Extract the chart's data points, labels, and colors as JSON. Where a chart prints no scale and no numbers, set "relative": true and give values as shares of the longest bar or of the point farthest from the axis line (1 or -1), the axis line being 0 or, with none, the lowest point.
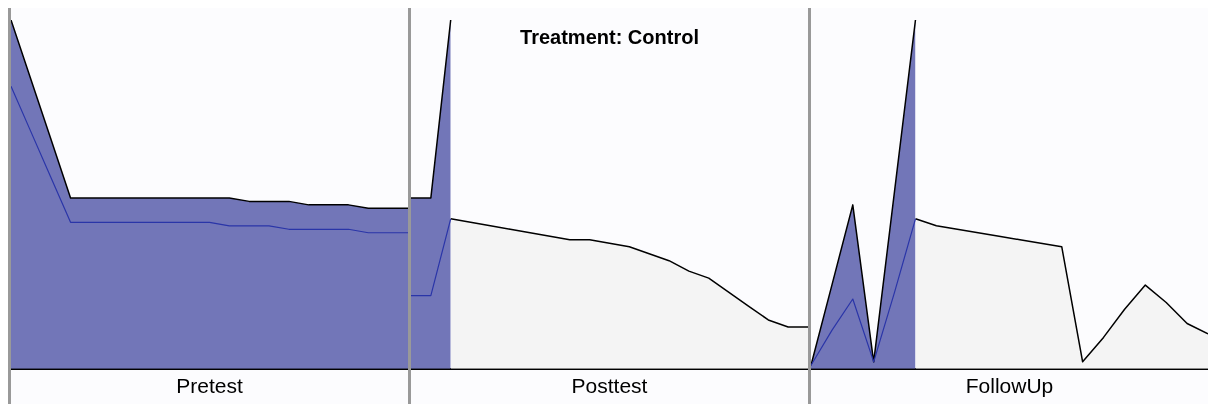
{
  "chart_data": [
    {
      "type": "area",
      "xlabel": "Pretest",
      "relative": true,
      "grid": false,
      "tick_labels": false,
      "categories": [
        null,
        null,
        null,
        null,
        null,
        null,
        null,
        null,
        null,
        null,
        null,
        null,
        null,
        null,
        null,
        null,
        null,
        null,
        null,
        null,
        null
      ],
      "series": [
        {
          "type": "area",
          "color": "#7276b8",
          "values": [
            1.0,
            0.83,
            0.66,
            0.49,
            0.49,
            0.49,
            0.49,
            0.49,
            0.49,
            0.49,
            0.49,
            0.49,
            0.48,
            0.48,
            0.48,
            0.47,
            0.47,
            0.47,
            0.46,
            0.46,
            0.46
          ]
        },
        {
          "type": "line",
          "color": "#2a35a8",
          "values": [
            0.81,
            0.68,
            0.55,
            0.42,
            0.42,
            0.42,
            0.42,
            0.42,
            0.42,
            0.42,
            0.42,
            0.41,
            0.41,
            0.41,
            0.4,
            0.4,
            0.4,
            0.4,
            0.39,
            0.39,
            0.39
          ]
        }
      ]
    },
    {
      "type": "area",
      "title": "Treatment: Control",
      "xlabel": "Posttest",
      "relative": true,
      "grid": false,
      "tick_labels": false,
      "categories": [
        null,
        null,
        null,
        null,
        null,
        null,
        null,
        null,
        null,
        null,
        null,
        null,
        null,
        null,
        null,
        null,
        null,
        null,
        null,
        null,
        null
      ],
      "series": [
        {
          "type": "area",
          "color": "#7276b8",
          "values": [
            0.49,
            0.49,
            1.0,
            null,
            null,
            null,
            null,
            null,
            null,
            null,
            null,
            null,
            null,
            null,
            null,
            null,
            null,
            null,
            null,
            null,
            null
          ]
        },
        {
          "type": "line",
          "color": "#2a35a8",
          "values": [
            0.21,
            0.21,
            0.43,
            null,
            null,
            null,
            null,
            null,
            null,
            null,
            null,
            null,
            null,
            null,
            null,
            null,
            null,
            null,
            null,
            null,
            null
          ]
        },
        {
          "type": "area",
          "color": "#f4f4f4",
          "values": [
            null,
            null,
            0.43,
            0.42,
            0.41,
            0.4,
            0.39,
            0.38,
            0.37,
            0.37,
            0.36,
            0.35,
            0.33,
            0.31,
            0.28,
            0.26,
            0.22,
            0.18,
            0.14,
            0.12,
            0.12
          ]
        }
      ]
    },
    {
      "type": "area",
      "xlabel": "FollowUp",
      "relative": true,
      "grid": false,
      "tick_labels": false,
      "categories": [
        null,
        null,
        null,
        null,
        null,
        null,
        null,
        null,
        null,
        null,
        null,
        null,
        null,
        null,
        null,
        null,
        null,
        null,
        null,
        null
      ],
      "series": [
        {
          "type": "area",
          "color": "#7276b8",
          "values": [
            0.01,
            0.24,
            0.47,
            0.02,
            0.51,
            1.0,
            null,
            null,
            null,
            null,
            null,
            null,
            null,
            null,
            null,
            null,
            null,
            null,
            null,
            null
          ]
        },
        {
          "type": "line",
          "color": "#2a35a8",
          "values": [
            0.01,
            0.11,
            0.2,
            0.02,
            0.22,
            0.43,
            null,
            null,
            null,
            null,
            null,
            null,
            null,
            null,
            null,
            null,
            null,
            null,
            null,
            null
          ]
        },
        {
          "type": "area",
          "color": "#f4f4f4",
          "values": [
            null,
            null,
            null,
            null,
            null,
            0.43,
            0.41,
            0.4,
            0.39,
            0.38,
            0.37,
            0.36,
            0.35,
            0.02,
            0.09,
            0.17,
            0.24,
            0.19,
            0.13,
            0.1
          ]
        }
      ]
    }
  ]
}
